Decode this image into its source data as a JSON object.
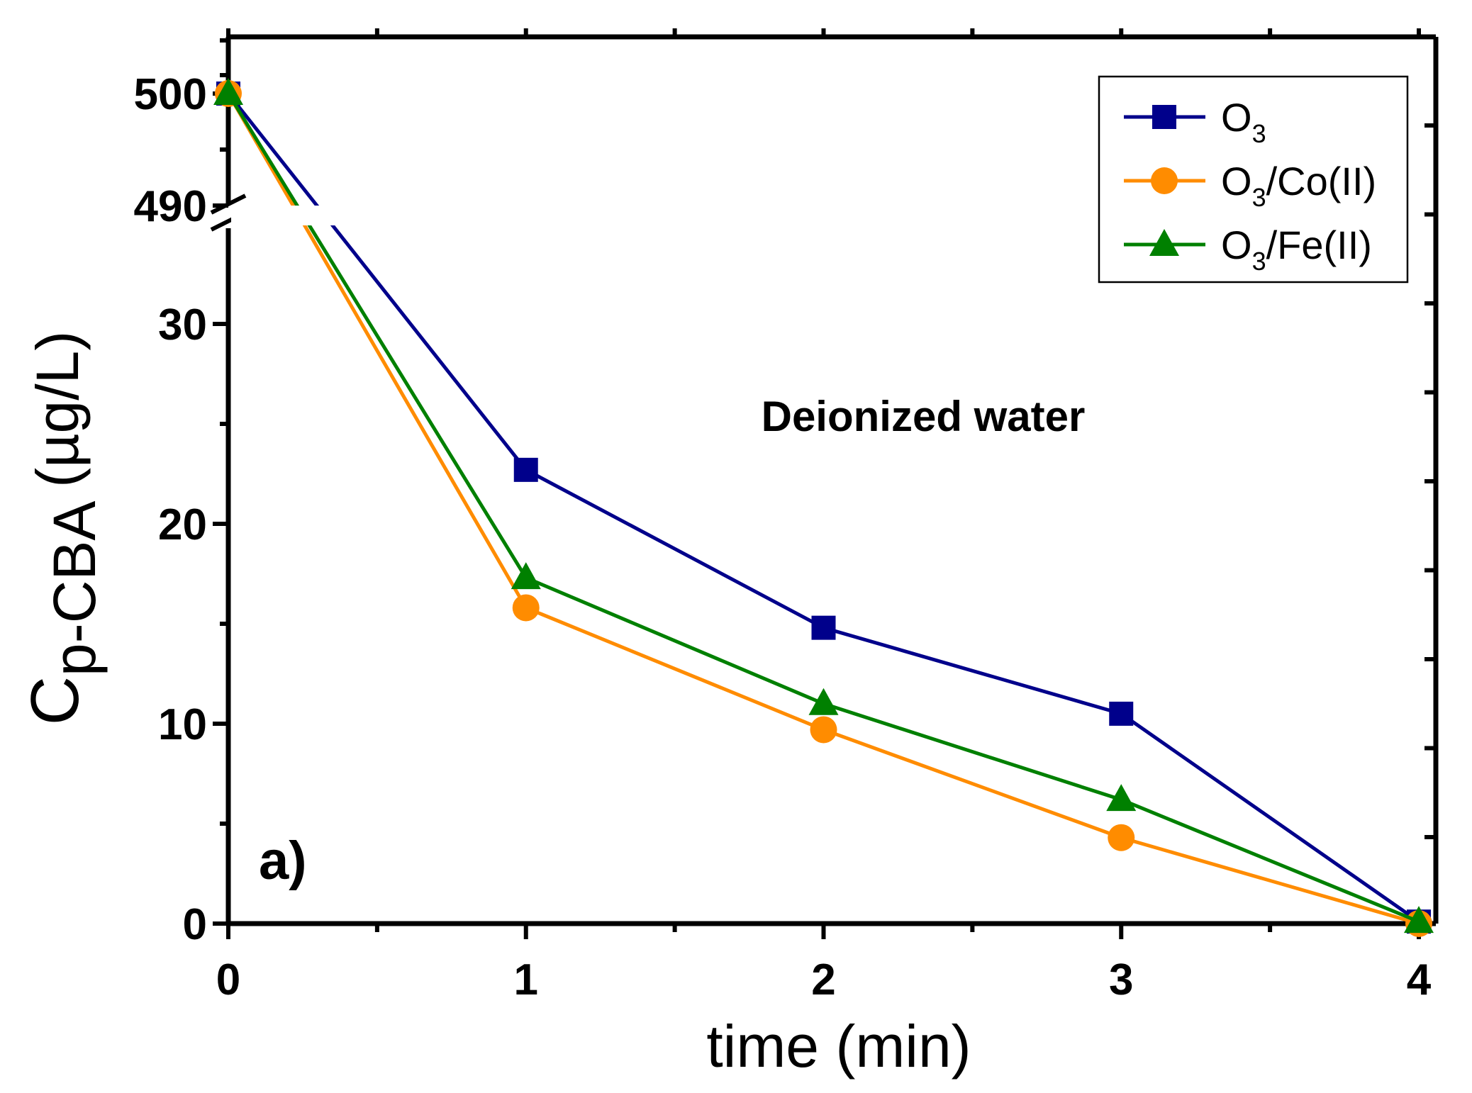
{
  "chart_data": {
    "type": "line",
    "title": "",
    "x": [
      0,
      1,
      2,
      3,
      4
    ],
    "x_ticks": [
      "0",
      "1",
      "2",
      "3",
      "4"
    ],
    "xlim": [
      0,
      4.1
    ],
    "y_ticks_lower": [
      "0",
      "10",
      "20",
      "30"
    ],
    "y_ticks_upper": [
      "490",
      "500"
    ],
    "ylim_lower": [
      0,
      35
    ],
    "ylim_upper": [
      490,
      502
    ],
    "y_axis_break": true,
    "xlabel": {
      "main": "time (min)"
    },
    "ylabel": {
      "main": "C",
      "sub": "p-CBA",
      "suffix": " (µg/L)"
    },
    "series": [
      {
        "name": {
          "main": "O",
          "sub": "3",
          "suffix": ""
        },
        "color": "#00008B",
        "marker": "square",
        "values": [
          500,
          22.7,
          14.8,
          10.5,
          0.1
        ]
      },
      {
        "name": {
          "main": "O",
          "sub": "3",
          "suffix": "/Co(II)"
        },
        "color": "#FF8C00",
        "marker": "circle",
        "values": [
          500,
          15.8,
          9.7,
          4.3,
          0.0
        ]
      },
      {
        "name": {
          "main": "O",
          "sub": "3",
          "suffix": "/Fe(II)"
        },
        "color": "#008000",
        "marker": "triangle",
        "values": [
          500,
          17.3,
          11.0,
          6.2,
          0.1
        ]
      }
    ],
    "legend_position": "top-right",
    "grid": false,
    "annotations": {
      "medium": "Deionized water",
      "panel": "a)"
    }
  }
}
